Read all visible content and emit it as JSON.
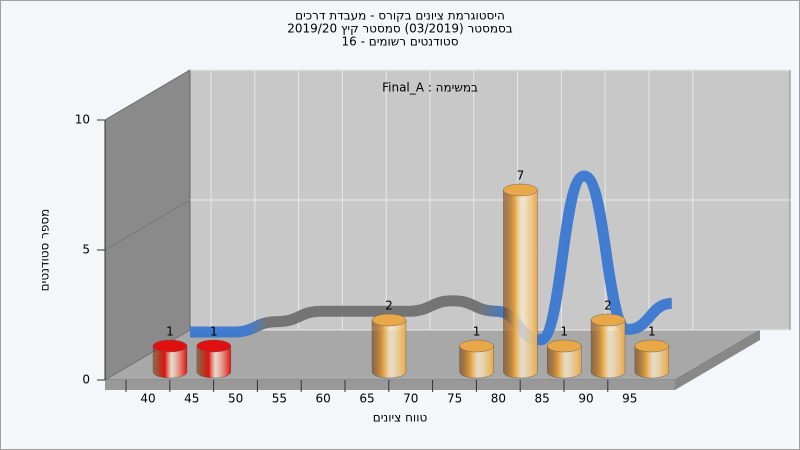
{
  "chart_data": {
    "type": "bar3d",
    "title": [
      "היסטוגרמת ציונים בקורס - מעבדת דרכים",
      "בסמסטר  (03/2019)  סמסטר קיץ 2019/20",
      "סטודנטים רשומים - 16"
    ],
    "subtitle": "במשימה : Final_A",
    "x_label": "טווח ציונים",
    "y_label": "מספר סטודנטים",
    "categories": [
      "40",
      "45",
      "50",
      "55",
      "60",
      "65",
      "70",
      "75",
      "80",
      "85",
      "90",
      "95"
    ],
    "values": [
      1,
      1,
      0,
      0,
      0,
      2,
      0,
      1,
      7,
      1,
      2,
      1
    ],
    "value_labels": [
      "1",
      "1",
      null,
      null,
      null,
      "2",
      null,
      "1",
      "7",
      "1",
      "2",
      "1"
    ],
    "colors": [
      "#e01010",
      "#e01010",
      "#e8a848",
      "#e8a848",
      "#e8a848",
      "#e8a848",
      "#e8a848",
      "#e8a848",
      "#e8a848",
      "#e8a848",
      "#e8a848",
      "#e8a848"
    ],
    "curve": {
      "values": [
        0.5,
        0.5,
        0.9,
        1.3,
        1.3,
        1.3,
        1.7,
        1.3,
        0.2,
        6.5,
        0.6,
        1.6
      ],
      "color": "#3a78d0"
    },
    "ylim": [
      0,
      10
    ],
    "yticks": [
      0,
      5,
      10
    ],
    "grid": true
  }
}
